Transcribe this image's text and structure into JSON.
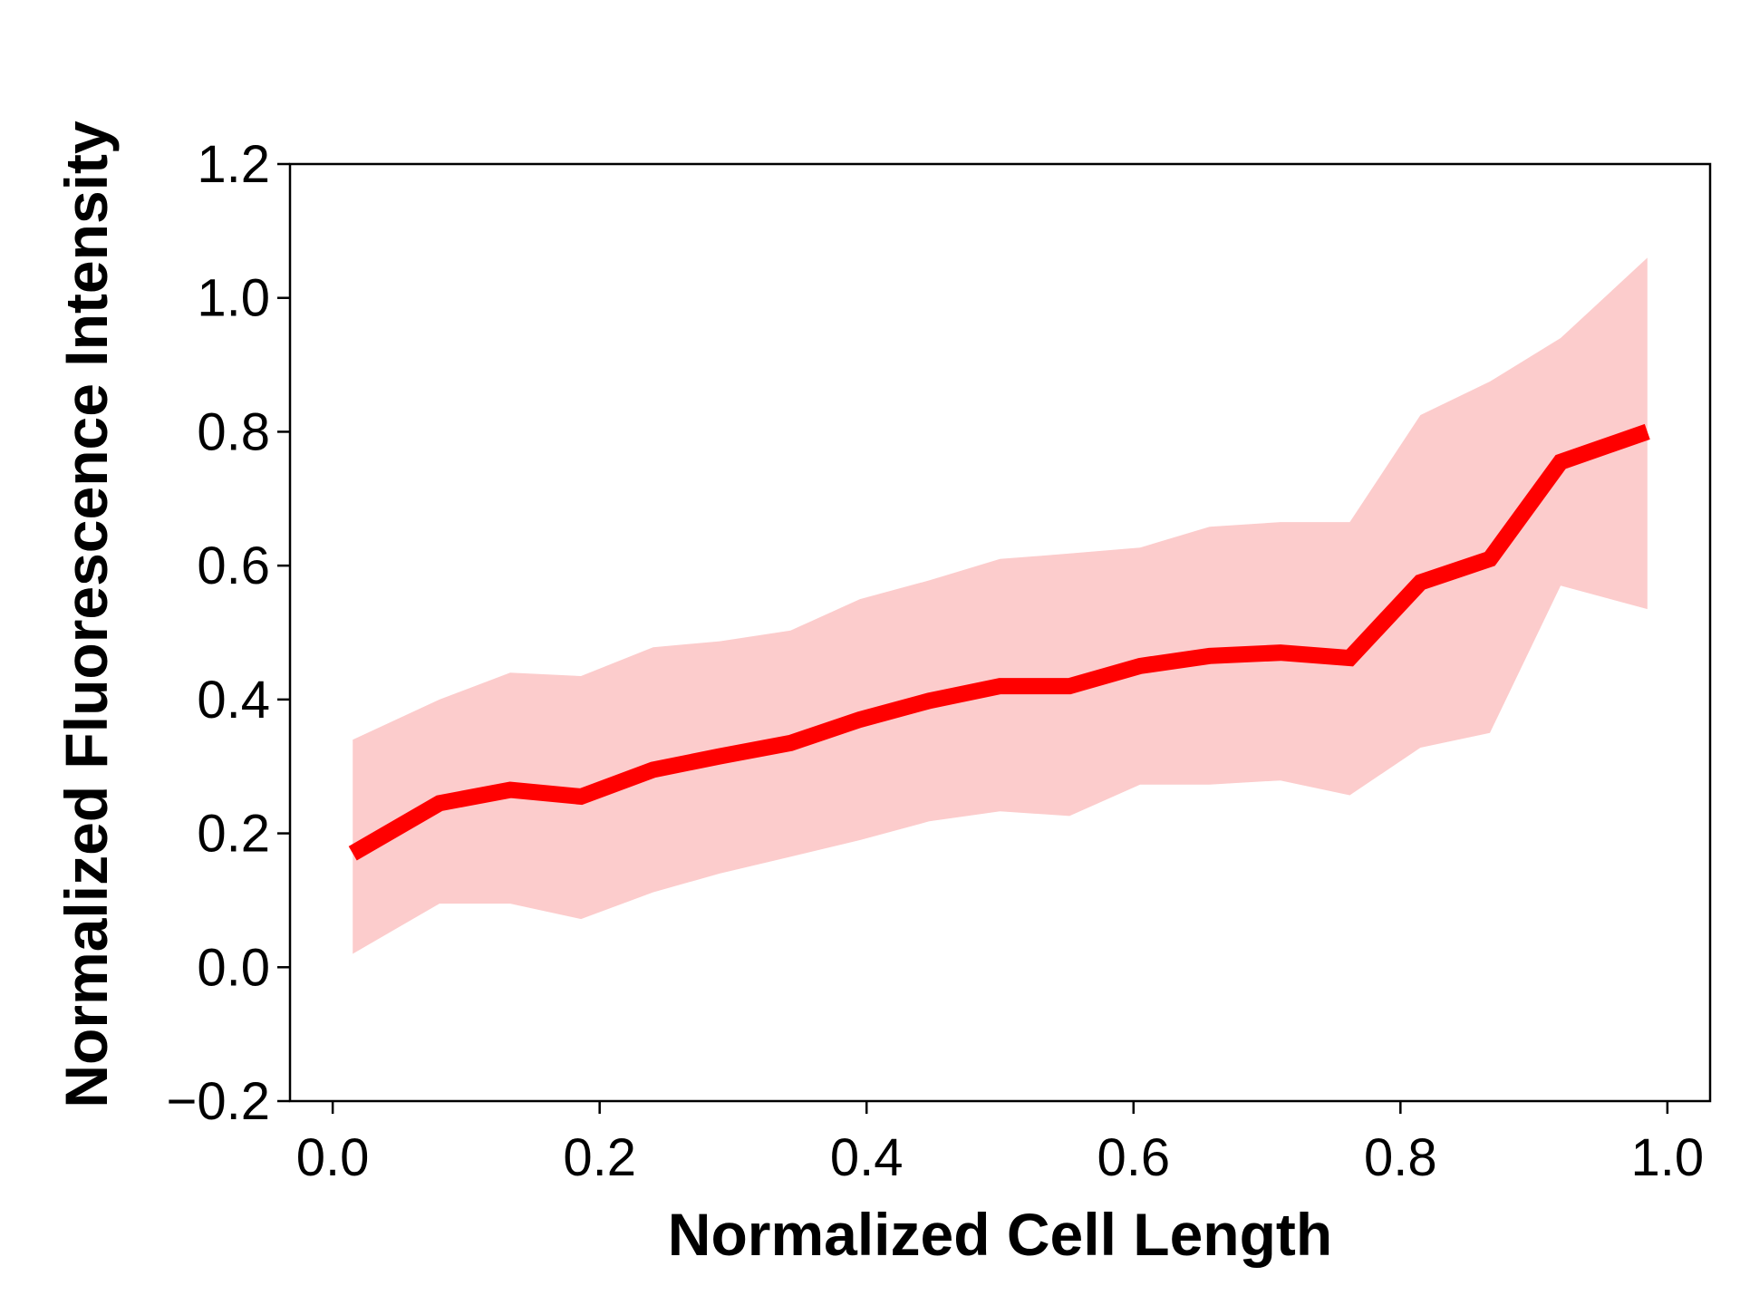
{
  "chart_data": {
    "type": "line",
    "title": "",
    "xlabel": "Normalized Cell Length",
    "ylabel": "Normalized Fluorescence Intensity",
    "xlim": [
      -0.032,
      1.032
    ],
    "ylim": [
      -0.2,
      1.2
    ],
    "xticks": [
      0.0,
      0.2,
      0.4,
      0.6,
      0.8,
      1.0
    ],
    "xtick_labels": [
      "0.0",
      "0.2",
      "0.4",
      "0.6",
      "0.8",
      "1.0"
    ],
    "yticks": [
      -0.2,
      0.0,
      0.2,
      0.4,
      0.6,
      0.8,
      1.0,
      1.2
    ],
    "ytick_labels": [
      "−0.2",
      "0.0",
      "0.2",
      "0.4",
      "0.6",
      "0.8",
      "1.0",
      "1.2"
    ],
    "grid": false,
    "legend": "none",
    "series": [
      {
        "color": "#ff0000",
        "band_color": "#fccccc",
        "x": [
          0.015,
          0.08,
          0.133,
          0.186,
          0.24,
          0.29,
          0.343,
          0.395,
          0.447,
          0.5,
          0.552,
          0.605,
          0.657,
          0.71,
          0.762,
          0.815,
          0.867,
          0.92,
          0.985
        ],
        "y": [
          0.17,
          0.245,
          0.265,
          0.255,
          0.295,
          0.315,
          0.335,
          0.37,
          0.398,
          0.42,
          0.42,
          0.45,
          0.465,
          0.47,
          0.462,
          0.575,
          0.61,
          0.755,
          0.8
        ],
        "lower": [
          0.02,
          0.095,
          0.095,
          0.072,
          0.112,
          0.14,
          0.165,
          0.19,
          0.218,
          0.233,
          0.226,
          0.273,
          0.273,
          0.279,
          0.257,
          0.328,
          0.35,
          0.57,
          0.535
        ],
        "upper": [
          0.34,
          0.4,
          0.44,
          0.435,
          0.478,
          0.487,
          0.503,
          0.55,
          0.578,
          0.61,
          0.618,
          0.627,
          0.658,
          0.665,
          0.665,
          0.825,
          0.875,
          0.94,
          1.06
        ]
      }
    ]
  }
}
